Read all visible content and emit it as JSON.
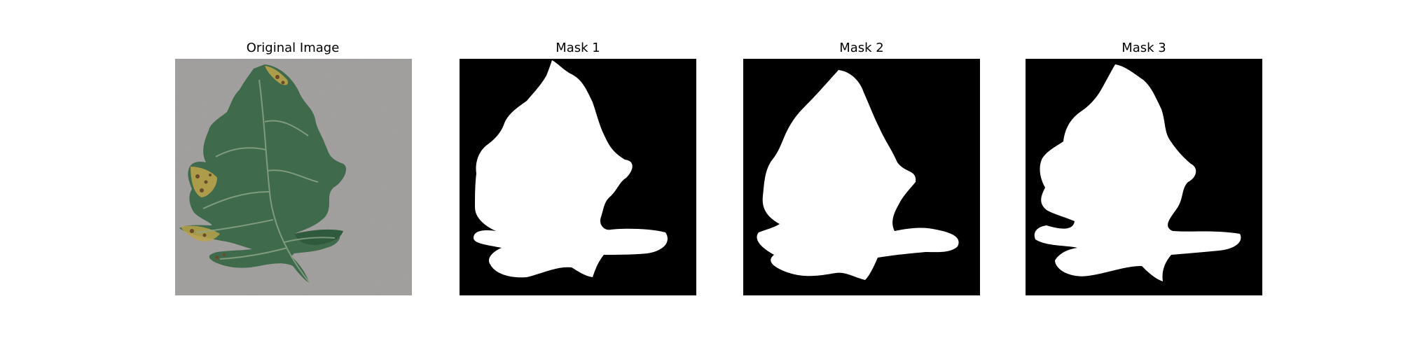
{
  "figure": {
    "background_color": "#ffffff",
    "panels": [
      {
        "title": "Original Image",
        "kind": "photo",
        "subject": "tomato leaf on gray background"
      },
      {
        "title": "Mask 1",
        "kind": "binary-mask",
        "foreground": "#ffffff",
        "background": "#000000"
      },
      {
        "title": "Mask 2",
        "kind": "binary-mask",
        "foreground": "#ffffff",
        "background": "#000000"
      },
      {
        "title": "Mask 3",
        "kind": "binary-mask",
        "foreground": "#ffffff",
        "background": "#000000"
      }
    ]
  },
  "colors": {
    "photo_background": "#a6a4a2",
    "leaf_green": "#3f6b4c",
    "leaf_dark": "#2f5a3e",
    "vein": "#8fa68a",
    "blight_yellow": "#b9a24a",
    "blight_brown": "#6b4a2a"
  }
}
